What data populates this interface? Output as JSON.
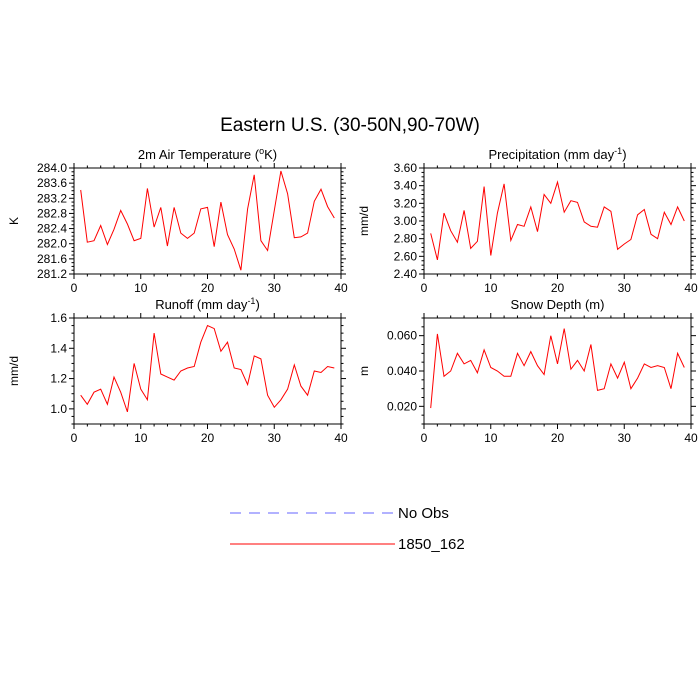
{
  "title": "Eastern U.S. (30-50N,90-70W)",
  "colors": {
    "model": "#ff0000",
    "obs": "#6666ff",
    "axis": "#000000"
  },
  "legend": {
    "placement": "bottom-center",
    "items": [
      {
        "label": "No Obs",
        "style": "dashed",
        "color": "#6666ff"
      },
      {
        "label": "1850_162",
        "style": "solid",
        "color": "#ff0000"
      }
    ]
  },
  "chart_data": [
    {
      "type": "line",
      "title": "2m Air Temperature (°K)",
      "title_parts": [
        "2m Air Temperature (",
        "o",
        "K)"
      ],
      "ylabel": "K",
      "xlim": [
        0,
        40
      ],
      "ylim": [
        281.2,
        284.0
      ],
      "xticks": [
        0,
        10,
        20,
        30,
        40
      ],
      "yticks": [
        281.2,
        281.6,
        282.0,
        282.4,
        282.8,
        283.2,
        283.6,
        284.0
      ],
      "ytick_labels": [
        "281.2",
        "281.6",
        "282.0",
        "282.4",
        "282.8",
        "283.2",
        "283.6",
        "284.0"
      ],
      "series": [
        {
          "name": "1850_162",
          "x": [
            1,
            2,
            3,
            4,
            5,
            6,
            7,
            8,
            9,
            10,
            11,
            12,
            13,
            14,
            15,
            16,
            17,
            18,
            19,
            20,
            21,
            22,
            23,
            24,
            25,
            26,
            27,
            28,
            29,
            30,
            31,
            32,
            33,
            34,
            35,
            36,
            37,
            38,
            39
          ],
          "values": [
            283.42,
            282.04,
            282.08,
            282.48,
            281.98,
            282.38,
            282.88,
            282.52,
            282.08,
            282.14,
            283.46,
            282.44,
            282.96,
            281.94,
            282.96,
            282.28,
            282.14,
            282.28,
            282.92,
            282.96,
            281.92,
            283.1,
            282.24,
            281.86,
            281.3,
            282.92,
            283.82,
            282.08,
            281.82,
            282.88,
            283.92,
            283.32,
            282.16,
            282.18,
            282.28,
            283.12,
            283.44,
            282.98,
            282.68
          ]
        }
      ]
    },
    {
      "type": "line",
      "title": "Precipitation (mm day-1)",
      "title_parts": [
        "Precipitation (mm day",
        "-1",
        ")"
      ],
      "ylabel": "mm/d",
      "xlim": [
        0,
        40
      ],
      "ylim": [
        2.4,
        3.6
      ],
      "xticks": [
        0,
        10,
        20,
        30,
        40
      ],
      "yticks": [
        2.4,
        2.6,
        2.8,
        3.0,
        3.2,
        3.4,
        3.6
      ],
      "ytick_labels": [
        "2.40",
        "2.60",
        "2.80",
        "3.00",
        "3.20",
        "3.40",
        "3.60"
      ],
      "series": [
        {
          "name": "1850_162",
          "x": [
            1,
            2,
            3,
            4,
            5,
            6,
            7,
            8,
            9,
            10,
            11,
            12,
            13,
            14,
            15,
            16,
            17,
            18,
            19,
            20,
            21,
            22,
            23,
            24,
            25,
            26,
            27,
            28,
            29,
            30,
            31,
            32,
            33,
            34,
            35,
            36,
            37,
            38,
            39
          ],
          "values": [
            2.86,
            2.56,
            3.09,
            2.89,
            2.76,
            3.12,
            2.69,
            2.77,
            3.39,
            2.61,
            3.09,
            3.42,
            2.78,
            2.96,
            2.94,
            3.16,
            2.88,
            3.3,
            3.2,
            3.44,
            3.1,
            3.23,
            3.21,
            2.99,
            2.94,
            2.93,
            3.16,
            3.11,
            2.68,
            2.74,
            2.79,
            3.07,
            3.13,
            2.85,
            2.8,
            3.1,
            2.96,
            3.16,
            3.0
          ]
        }
      ]
    },
    {
      "type": "line",
      "title": "Runoff (mm day-1)",
      "title_parts": [
        "Runoff (mm day",
        "-1",
        ")"
      ],
      "ylabel": "mm/d",
      "xlim": [
        0,
        40
      ],
      "ylim": [
        0.9,
        1.6
      ],
      "xticks": [
        0,
        10,
        20,
        30,
        40
      ],
      "yticks": [
        1.0,
        1.2,
        1.4,
        1.6
      ],
      "ytick_labels": [
        "1.0",
        "1.2",
        "1.4",
        "1.6"
      ],
      "series": [
        {
          "name": "1850_162",
          "x": [
            1,
            2,
            3,
            4,
            5,
            6,
            7,
            8,
            9,
            10,
            11,
            12,
            13,
            14,
            15,
            16,
            17,
            18,
            19,
            20,
            21,
            22,
            23,
            24,
            25,
            26,
            27,
            28,
            29,
            30,
            31,
            32,
            33,
            34,
            35,
            36,
            37,
            38,
            39
          ],
          "values": [
            1.09,
            1.03,
            1.11,
            1.13,
            1.03,
            1.21,
            1.11,
            0.98,
            1.3,
            1.13,
            1.06,
            1.5,
            1.23,
            1.21,
            1.19,
            1.25,
            1.27,
            1.28,
            1.44,
            1.55,
            1.53,
            1.38,
            1.44,
            1.27,
            1.26,
            1.16,
            1.35,
            1.33,
            1.09,
            1.01,
            1.06,
            1.13,
            1.29,
            1.15,
            1.09,
            1.25,
            1.24,
            1.28,
            1.27
          ]
        }
      ]
    },
    {
      "type": "line",
      "title": "Snow Depth (m)",
      "title_parts": [
        "Snow Depth (m)",
        "",
        ""
      ],
      "ylabel": "m",
      "xlim": [
        0,
        40
      ],
      "ylim": [
        0.01,
        0.07
      ],
      "xticks": [
        0,
        10,
        20,
        30,
        40
      ],
      "yticks": [
        0.02,
        0.04,
        0.06
      ],
      "ytick_labels": [
        "0.020",
        "0.040",
        "0.060"
      ],
      "series": [
        {
          "name": "1850_162",
          "x": [
            1,
            2,
            3,
            4,
            5,
            6,
            7,
            8,
            9,
            10,
            11,
            12,
            13,
            14,
            15,
            16,
            17,
            18,
            19,
            20,
            21,
            22,
            23,
            24,
            25,
            26,
            27,
            28,
            29,
            30,
            31,
            32,
            33,
            34,
            35,
            36,
            37,
            38,
            39
          ],
          "values": [
            0.019,
            0.061,
            0.037,
            0.04,
            0.05,
            0.044,
            0.046,
            0.039,
            0.052,
            0.042,
            0.04,
            0.037,
            0.037,
            0.05,
            0.043,
            0.051,
            0.043,
            0.038,
            0.06,
            0.044,
            0.064,
            0.041,
            0.046,
            0.04,
            0.055,
            0.029,
            0.03,
            0.044,
            0.036,
            0.045,
            0.03,
            0.036,
            0.044,
            0.042,
            0.043,
            0.042,
            0.03,
            0.05,
            0.042
          ]
        }
      ]
    }
  ]
}
